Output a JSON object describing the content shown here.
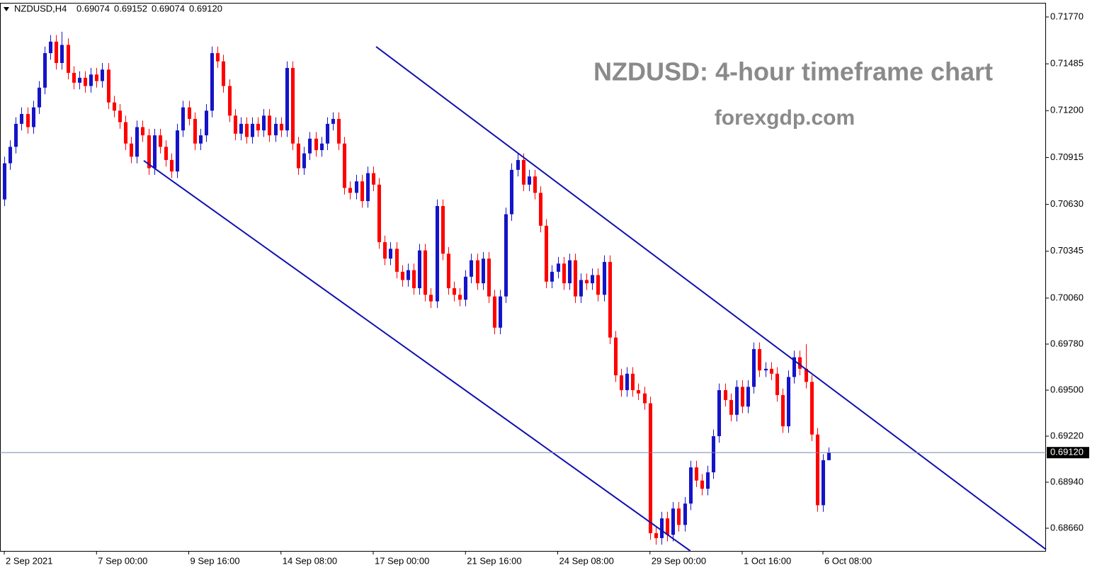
{
  "chart_data": {
    "type": "candlestick",
    "header": {
      "symbol": "NZDUSD,H4",
      "ohlc_labels": [
        "0.69074",
        "0.69152",
        "0.69074",
        "0.69120"
      ]
    },
    "title": "NZDUSD: 4-hour timeframe chart",
    "subtitle": "forexgdp.com",
    "up_color": "#1414c8",
    "down_color": "#ff0000",
    "current_price": {
      "value": 0.6912,
      "label": "0.69120"
    },
    "xlim": [
      -0.74,
      180.7
    ],
    "ylim": [
      0.68522,
      0.71856
    ],
    "yticks": [
      {
        "value": 0.7177,
        "label": "0.71770"
      },
      {
        "value": 0.71485,
        "label": "0.71485"
      },
      {
        "value": 0.712,
        "label": "0.71200"
      },
      {
        "value": 0.70915,
        "label": "0.70915"
      },
      {
        "value": 0.7063,
        "label": "0.70630"
      },
      {
        "value": 0.70345,
        "label": "0.70345"
      },
      {
        "value": 0.7006,
        "label": "0.70060"
      },
      {
        "value": 0.6978,
        "label": "0.69780"
      },
      {
        "value": 0.695,
        "label": "0.69500"
      },
      {
        "value": 0.6922,
        "label": "0.69220"
      },
      {
        "value": 0.6894,
        "label": "0.68940"
      },
      {
        "value": 0.6866,
        "label": "0.68660"
      }
    ],
    "xticks": [
      {
        "value": 0,
        "label": "2 Sep 2021"
      },
      {
        "value": 16,
        "label": "7 Sep 00:00"
      },
      {
        "value": 32,
        "label": "9 Sep 16:00"
      },
      {
        "value": 48,
        "label": "14 Sep 08:00"
      },
      {
        "value": 64,
        "label": "17 Sep 00:00"
      },
      {
        "value": 80,
        "label": "21 Sep 16:00"
      },
      {
        "value": 96,
        "label": "24 Sep 08:00"
      },
      {
        "value": 112,
        "label": "29 Sep 00:00"
      },
      {
        "value": 128,
        "label": "1 Oct 16:00"
      },
      {
        "value": 142,
        "label": "6 Oct 08:00"
      }
    ],
    "trendlines": [
      {
        "color": "#1010b0",
        "x": [
          64.5,
          180.7
        ],
        "y": [
          0.71589,
          0.68531
        ]
      },
      {
        "color": "#1010b0",
        "x": [
          24.2,
          119.0
        ],
        "y": [
          0.70896,
          0.68522
        ]
      }
    ],
    "ohlc": [
      [
        0.7066,
        0.7092,
        0.7062,
        0.7088
      ],
      [
        0.7088,
        0.7102,
        0.7084,
        0.7098
      ],
      [
        0.7098,
        0.7116,
        0.7094,
        0.7112
      ],
      [
        0.7112,
        0.7122,
        0.7108,
        0.7118
      ],
      [
        0.7118,
        0.7122,
        0.7106,
        0.711
      ],
      [
        0.711,
        0.7126,
        0.7106,
        0.7122
      ],
      [
        0.7122,
        0.7138,
        0.7118,
        0.7134
      ],
      [
        0.7134,
        0.7159,
        0.713,
        0.7155
      ],
      [
        0.7155,
        0.7166,
        0.7151,
        0.7162
      ],
      [
        0.7162,
        0.7166,
        0.7145,
        0.7149
      ],
      [
        0.7149,
        0.7168,
        0.7145,
        0.716
      ],
      [
        0.716,
        0.7164,
        0.7139,
        0.7143
      ],
      [
        0.7143,
        0.7147,
        0.7133,
        0.7137
      ],
      [
        0.7137,
        0.7144,
        0.7133,
        0.714
      ],
      [
        0.714,
        0.7144,
        0.7131,
        0.7135
      ],
      [
        0.7135,
        0.7146,
        0.7131,
        0.7142
      ],
      [
        0.7142,
        0.7146,
        0.7134,
        0.7138
      ],
      [
        0.7138,
        0.7149,
        0.7134,
        0.7145
      ],
      [
        0.7145,
        0.7149,
        0.7121,
        0.7125
      ],
      [
        0.7125,
        0.7129,
        0.7116,
        0.712
      ],
      [
        0.712,
        0.7124,
        0.7109,
        0.7113
      ],
      [
        0.7113,
        0.7117,
        0.7096,
        0.71
      ],
      [
        0.71,
        0.7104,
        0.7088,
        0.7092
      ],
      [
        0.7092,
        0.7114,
        0.7088,
        0.711
      ],
      [
        0.711,
        0.7114,
        0.7101,
        0.7105
      ],
      [
        0.7105,
        0.7109,
        0.7081,
        0.7085
      ],
      [
        0.7085,
        0.7109,
        0.7081,
        0.7105
      ],
      [
        0.7105,
        0.7109,
        0.7094,
        0.7098
      ],
      [
        0.7098,
        0.7102,
        0.7086,
        0.709
      ],
      [
        0.709,
        0.7094,
        0.7079,
        0.7083
      ],
      [
        0.7083,
        0.7112,
        0.7079,
        0.7108
      ],
      [
        0.7108,
        0.7126,
        0.7104,
        0.7122
      ],
      [
        0.7122,
        0.7126,
        0.7111,
        0.7115
      ],
      [
        0.7115,
        0.7119,
        0.7096,
        0.71
      ],
      [
        0.71,
        0.7109,
        0.7096,
        0.7105
      ],
      [
        0.7105,
        0.7124,
        0.7101,
        0.712
      ],
      [
        0.712,
        0.7159,
        0.7116,
        0.7155
      ],
      [
        0.7155,
        0.7159,
        0.7146,
        0.715
      ],
      [
        0.715,
        0.7154,
        0.7131,
        0.7135
      ],
      [
        0.7135,
        0.7139,
        0.7113,
        0.7117
      ],
      [
        0.7117,
        0.7121,
        0.7102,
        0.7106
      ],
      [
        0.7106,
        0.7116,
        0.7102,
        0.7112
      ],
      [
        0.7112,
        0.7116,
        0.71,
        0.7104
      ],
      [
        0.7104,
        0.7116,
        0.71,
        0.7112
      ],
      [
        0.7112,
        0.7116,
        0.7104,
        0.7108
      ],
      [
        0.7108,
        0.7121,
        0.7104,
        0.7117
      ],
      [
        0.7117,
        0.7121,
        0.7101,
        0.7105
      ],
      [
        0.7105,
        0.7116,
        0.7101,
        0.7112
      ],
      [
        0.7112,
        0.7116,
        0.7104,
        0.7108
      ],
      [
        0.7108,
        0.715,
        0.7104,
        0.7146
      ],
      [
        0.7146,
        0.715,
        0.7096,
        0.71
      ],
      [
        0.71,
        0.7104,
        0.7081,
        0.7085
      ],
      [
        0.7085,
        0.7098,
        0.7081,
        0.7094
      ],
      [
        0.7094,
        0.7107,
        0.709,
        0.7103
      ],
      [
        0.7103,
        0.7107,
        0.7092,
        0.7096
      ],
      [
        0.7096,
        0.7104,
        0.7092,
        0.71
      ],
      [
        0.71,
        0.7116,
        0.7096,
        0.7112
      ],
      [
        0.7112,
        0.7119,
        0.7108,
        0.7115
      ],
      [
        0.7115,
        0.7119,
        0.7096,
        0.71
      ],
      [
        0.71,
        0.7104,
        0.7069,
        0.7073
      ],
      [
        0.7073,
        0.7077,
        0.7066,
        0.707
      ],
      [
        0.707,
        0.7081,
        0.7066,
        0.7077
      ],
      [
        0.7077,
        0.7081,
        0.7061,
        0.7065
      ],
      [
        0.7065,
        0.7086,
        0.7061,
        0.7082
      ],
      [
        0.7082,
        0.7086,
        0.7071,
        0.7075
      ],
      [
        0.7075,
        0.7079,
        0.7036,
        0.704
      ],
      [
        0.704,
        0.7044,
        0.7026,
        0.703
      ],
      [
        0.703,
        0.704,
        0.7026,
        0.7036
      ],
      [
        0.7036,
        0.704,
        0.7018,
        0.7022
      ],
      [
        0.7022,
        0.7026,
        0.7013,
        0.7017
      ],
      [
        0.7017,
        0.7027,
        0.7013,
        0.7023
      ],
      [
        0.7023,
        0.7027,
        0.7008,
        0.7012
      ],
      [
        0.7012,
        0.7039,
        0.7008,
        0.7035
      ],
      [
        0.7035,
        0.7039,
        0.7004,
        0.7008
      ],
      [
        0.7008,
        0.7012,
        0.7,
        0.7004
      ],
      [
        0.7004,
        0.7066,
        0.7,
        0.7062
      ],
      [
        0.7062,
        0.7066,
        0.7029,
        0.7033
      ],
      [
        0.7033,
        0.7037,
        0.7008,
        0.7012
      ],
      [
        0.7012,
        0.7016,
        0.7004,
        0.7008
      ],
      [
        0.7008,
        0.7012,
        0.7001,
        0.7005
      ],
      [
        0.7005,
        0.7023,
        0.7001,
        0.7019
      ],
      [
        0.7019,
        0.7033,
        0.7015,
        0.7029
      ],
      [
        0.7029,
        0.7033,
        0.7011,
        0.7015
      ],
      [
        0.7015,
        0.7034,
        0.7011,
        0.703
      ],
      [
        0.703,
        0.7034,
        0.7003,
        0.7007
      ],
      [
        0.7007,
        0.7011,
        0.6984,
        0.6988
      ],
      [
        0.6988,
        0.7011,
        0.6984,
        0.7007
      ],
      [
        0.7007,
        0.7061,
        0.7003,
        0.7057
      ],
      [
        0.7057,
        0.7088,
        0.7053,
        0.7084
      ],
      [
        0.7084,
        0.7094,
        0.708,
        0.709
      ],
      [
        0.709,
        0.7094,
        0.7071,
        0.7075
      ],
      [
        0.7075,
        0.7084,
        0.7071,
        0.708
      ],
      [
        0.708,
        0.7084,
        0.7066,
        0.707
      ],
      [
        0.707,
        0.7074,
        0.7046,
        0.705
      ],
      [
        0.705,
        0.7054,
        0.7012,
        0.7016
      ],
      [
        0.7016,
        0.7026,
        0.7012,
        0.7022
      ],
      [
        0.7022,
        0.7031,
        0.7018,
        0.7027
      ],
      [
        0.7027,
        0.7031,
        0.7011,
        0.7015
      ],
      [
        0.7015,
        0.7033,
        0.7011,
        0.7029
      ],
      [
        0.7029,
        0.7033,
        0.7003,
        0.7007
      ],
      [
        0.7007,
        0.7021,
        0.7003,
        0.7017
      ],
      [
        0.7017,
        0.7021,
        0.7011,
        0.7015
      ],
      [
        0.7015,
        0.7024,
        0.7011,
        0.702
      ],
      [
        0.702,
        0.7024,
        0.7004,
        0.7008
      ],
      [
        0.7008,
        0.7032,
        0.7004,
        0.7028
      ],
      [
        0.7028,
        0.7032,
        0.6978,
        0.6982
      ],
      [
        0.6982,
        0.6986,
        0.6955,
        0.6959
      ],
      [
        0.6959,
        0.6963,
        0.6946,
        0.695
      ],
      [
        0.695,
        0.6964,
        0.6946,
        0.696
      ],
      [
        0.696,
        0.6964,
        0.6946,
        0.695
      ],
      [
        0.695,
        0.6954,
        0.6944,
        0.6948
      ],
      [
        0.6948,
        0.6952,
        0.6938,
        0.6942
      ],
      [
        0.6942,
        0.6946,
        0.6859,
        0.6863
      ],
      [
        0.6863,
        0.6867,
        0.6856,
        0.686
      ],
      [
        0.686,
        0.6876,
        0.6856,
        0.6872
      ],
      [
        0.6872,
        0.6876,
        0.6858,
        0.6862
      ],
      [
        0.6862,
        0.6882,
        0.6858,
        0.6878
      ],
      [
        0.6878,
        0.6882,
        0.6864,
        0.6868
      ],
      [
        0.6868,
        0.6885,
        0.6864,
        0.6881
      ],
      [
        0.6881,
        0.6907,
        0.6877,
        0.6903
      ],
      [
        0.6903,
        0.6907,
        0.6891,
        0.6895
      ],
      [
        0.6895,
        0.6899,
        0.6886,
        0.689
      ],
      [
        0.689,
        0.6904,
        0.6886,
        0.69
      ],
      [
        0.69,
        0.6926,
        0.6896,
        0.6922
      ],
      [
        0.6922,
        0.6954,
        0.6918,
        0.695
      ],
      [
        0.695,
        0.6954,
        0.694,
        0.6944
      ],
      [
        0.6944,
        0.6948,
        0.6931,
        0.6935
      ],
      [
        0.6935,
        0.6956,
        0.6931,
        0.6952
      ],
      [
        0.6952,
        0.6956,
        0.6936,
        0.694
      ],
      [
        0.694,
        0.6956,
        0.6936,
        0.6952
      ],
      [
        0.6952,
        0.6979,
        0.6948,
        0.6975
      ],
      [
        0.6975,
        0.6979,
        0.6958,
        0.6962
      ],
      [
        0.6962,
        0.6967,
        0.6958,
        0.6963
      ],
      [
        0.6963,
        0.6967,
        0.6956,
        0.696
      ],
      [
        0.696,
        0.6964,
        0.6943,
        0.6947
      ],
      [
        0.6947,
        0.6951,
        0.6924,
        0.6928
      ],
      [
        0.6928,
        0.6962,
        0.6924,
        0.6958
      ],
      [
        0.6958,
        0.6974,
        0.6954,
        0.697
      ],
      [
        0.697,
        0.6974,
        0.6959,
        0.6963
      ],
      [
        0.6963,
        0.6978,
        0.6951,
        0.6955
      ],
      [
        0.6955,
        0.6959,
        0.6919,
        0.6923
      ],
      [
        0.6923,
        0.6927,
        0.6876,
        0.688
      ],
      [
        0.688,
        0.6911,
        0.6876,
        0.69074
      ],
      [
        0.69074,
        0.69152,
        0.69074,
        0.6912
      ]
    ]
  }
}
